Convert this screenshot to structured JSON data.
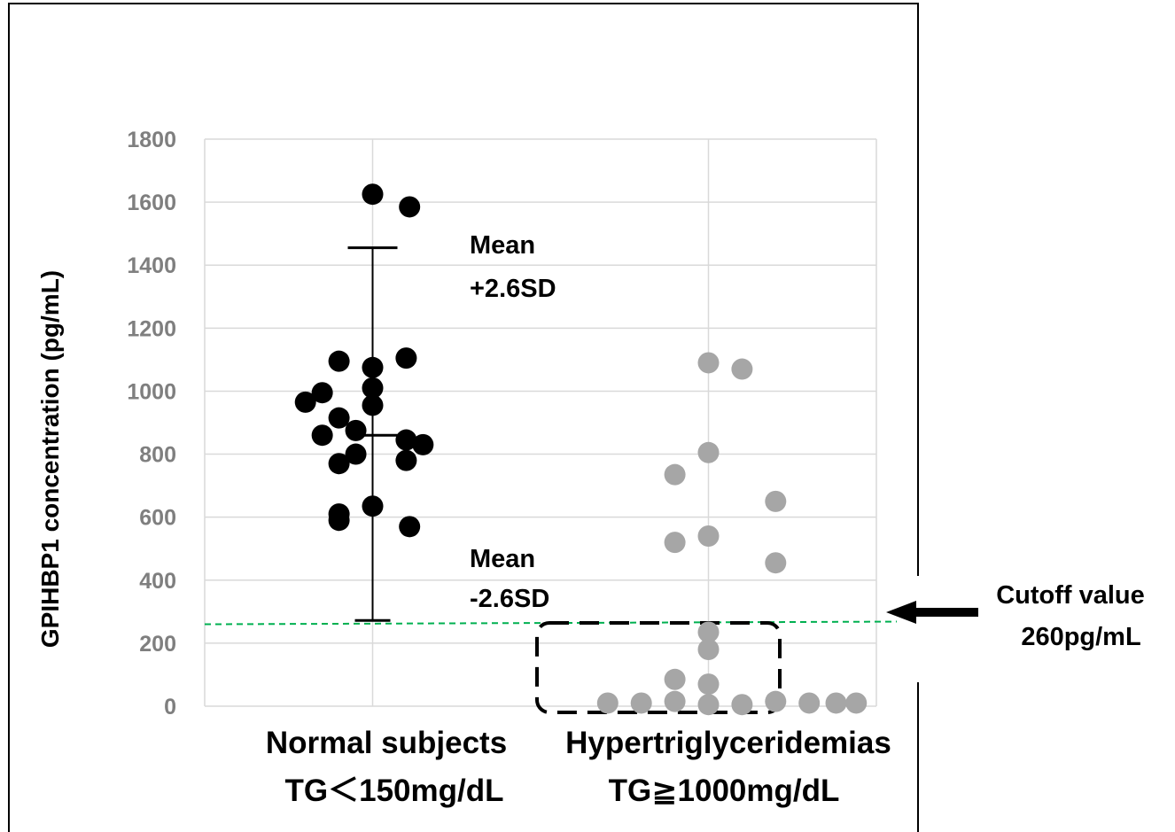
{
  "chart_data": {
    "type": "scatter",
    "ylabel": "GPIHBP1 concentration (pg/mL)",
    "ylim": [
      0,
      1800
    ],
    "yticks": [
      0,
      200,
      400,
      600,
      800,
      1000,
      1200,
      1400,
      1600,
      1800
    ],
    "grid": true,
    "categories": [
      {
        "line1": "Normal subjects",
        "line2": "TG＜150mg/dL"
      },
      {
        "line1": "Hypertriglyceridemias",
        "line2": "TG≧1000mg/dL"
      }
    ],
    "series": [
      {
        "color": "#000000",
        "points": [
          {
            "x": 1.0,
            "y": 1625
          },
          {
            "x": 1.11,
            "y": 1585
          },
          {
            "x": 0.9,
            "y": 1095
          },
          {
            "x": 1.0,
            "y": 1075
          },
          {
            "x": 1.1,
            "y": 1105
          },
          {
            "x": 1.0,
            "y": 1010
          },
          {
            "x": 0.85,
            "y": 995
          },
          {
            "x": 0.8,
            "y": 965
          },
          {
            "x": 1.0,
            "y": 955
          },
          {
            "x": 0.9,
            "y": 915
          },
          {
            "x": 0.95,
            "y": 875
          },
          {
            "x": 0.85,
            "y": 860
          },
          {
            "x": 1.1,
            "y": 845
          },
          {
            "x": 1.15,
            "y": 830
          },
          {
            "x": 0.95,
            "y": 800
          },
          {
            "x": 1.1,
            "y": 780
          },
          {
            "x": 0.9,
            "y": 770
          },
          {
            "x": 1.0,
            "y": 635
          },
          {
            "x": 0.9,
            "y": 610
          },
          {
            "x": 0.9,
            "y": 590
          },
          {
            "x": 1.11,
            "y": 570
          }
        ]
      },
      {
        "color": "#a6a6a6",
        "points": [
          {
            "x": 2.0,
            "y": 1090
          },
          {
            "x": 2.1,
            "y": 1070
          },
          {
            "x": 2.0,
            "y": 805
          },
          {
            "x": 1.9,
            "y": 735
          },
          {
            "x": 2.2,
            "y": 650
          },
          {
            "x": 2.0,
            "y": 540
          },
          {
            "x": 1.9,
            "y": 520
          },
          {
            "x": 2.2,
            "y": 455
          },
          {
            "x": 2.0,
            "y": 235
          },
          {
            "x": 2.0,
            "y": 180
          },
          {
            "x": 1.9,
            "y": 85
          },
          {
            "x": 2.0,
            "y": 70
          },
          {
            "x": 1.7,
            "y": 10
          },
          {
            "x": 1.8,
            "y": 10
          },
          {
            "x": 1.9,
            "y": 15
          },
          {
            "x": 2.0,
            "y": 5
          },
          {
            "x": 2.1,
            "y": 5
          },
          {
            "x": 2.2,
            "y": 15
          },
          {
            "x": 2.3,
            "y": 10
          },
          {
            "x": 2.38,
            "y": 10
          },
          {
            "x": 2.44,
            "y": 10
          }
        ]
      }
    ],
    "error_bar": {
      "category": 1,
      "mean": 860,
      "upper": 1455,
      "lower": 272
    },
    "annotations": {
      "upper_line1": "Mean",
      "upper_line2": "+2.6SD",
      "lower_line1": "Mean",
      "lower_line2": "-2.6SD",
      "cutoff_line1": "Cutoff value",
      "cutoff_line2": "260pg/mL"
    },
    "cutoff": {
      "value": 260,
      "color": "#00b050"
    }
  }
}
